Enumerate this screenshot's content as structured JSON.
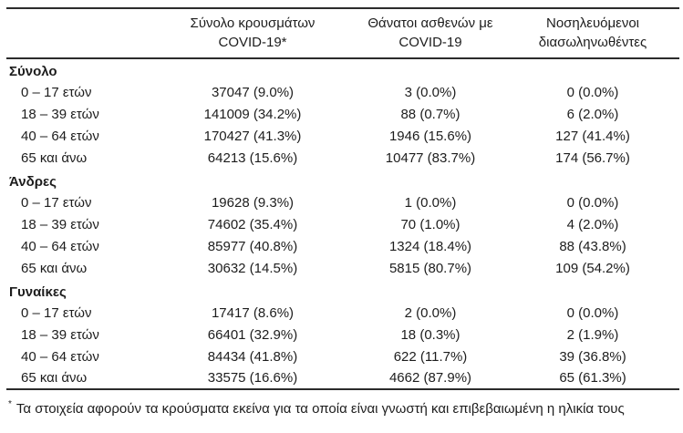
{
  "document": {
    "language": "el",
    "background_color": "#ffffff",
    "text_color": "#1d1d1d",
    "rule_color": "#2b2b2b"
  },
  "table": {
    "header": {
      "cases": {
        "line1": "Σύνολο κρουσμάτων",
        "line2": "COVID-19*"
      },
      "deaths": {
        "line1": "Θάνατοι ασθενών με",
        "line2": "COVID-19"
      },
      "intubated": {
        "line1": "Νοσηλευόμενοι",
        "line2": "διασωληνωθέντες"
      }
    },
    "sections": [
      {
        "label": "Σύνολο",
        "rows": [
          {
            "label": "0 – 17 ετών",
            "cases": "37047 (9.0%)",
            "deaths": "3 (0.0%)",
            "intubated": "0 (0.0%)"
          },
          {
            "label": "18 – 39 ετών",
            "cases": "141009 (34.2%)",
            "deaths": "88 (0.7%)",
            "intubated": "6 (2.0%)"
          },
          {
            "label": "40 – 64 ετών",
            "cases": "170427 (41.3%)",
            "deaths": "1946 (15.6%)",
            "intubated": "127 (41.4%)"
          },
          {
            "label": "65 και άνω",
            "cases": "64213 (15.6%)",
            "deaths": "10477 (83.7%)",
            "intubated": "174 (56.7%)"
          }
        ]
      },
      {
        "label": "Άνδρες",
        "rows": [
          {
            "label": "0 – 17 ετών",
            "cases": "19628 (9.3%)",
            "deaths": "1 (0.0%)",
            "intubated": "0 (0.0%)"
          },
          {
            "label": "18 – 39 ετών",
            "cases": "74602 (35.4%)",
            "deaths": "70 (1.0%)",
            "intubated": "4 (2.0%)"
          },
          {
            "label": "40 – 64 ετών",
            "cases": "85977 (40.8%)",
            "deaths": "1324 (18.4%)",
            "intubated": "88 (43.8%)"
          },
          {
            "label": "65 και άνω",
            "cases": "30632 (14.5%)",
            "deaths": "5815 (80.7%)",
            "intubated": "109 (54.2%)"
          }
        ]
      },
      {
        "label": "Γυναίκες",
        "rows": [
          {
            "label": "0 – 17 ετών",
            "cases": "17417 (8.6%)",
            "deaths": "2 (0.0%)",
            "intubated": "0 (0.0%)"
          },
          {
            "label": "18 – 39 ετών",
            "cases": "66401 (32.9%)",
            "deaths": "18 (0.3%)",
            "intubated": "2 (1.9%)"
          },
          {
            "label": "40 – 64 ετών",
            "cases": "84434 (41.8%)",
            "deaths": "622 (11.7%)",
            "intubated": "39 (36.8%)"
          },
          {
            "label": "65 και άνω",
            "cases": "33575 (16.6%)",
            "deaths": "4662 (87.9%)",
            "intubated": "65 (61.3%)"
          }
        ]
      }
    ]
  },
  "footnote": {
    "marker": "*",
    "text": "Τα στοιχεία αφορούν τα κρούσματα εκείνα για τα οποία είναι γνωστή και επιβεβαιωμένη η ηλικία τους"
  }
}
